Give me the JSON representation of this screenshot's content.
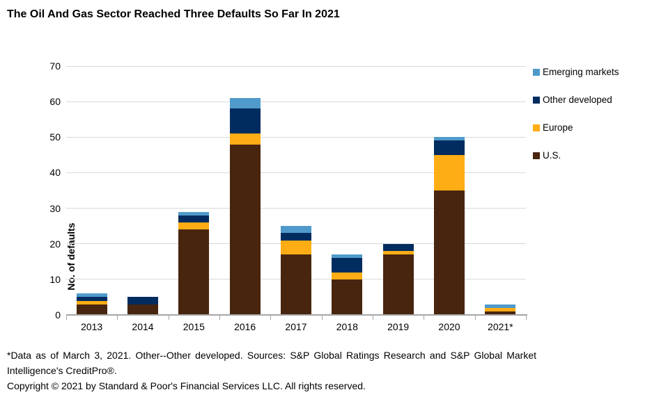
{
  "title": "The Oil And Gas Sector Reached Three Defaults So Far In 2021",
  "y_axis_label": "No. of defaults",
  "legend": [
    {
      "label": "Emerging markets",
      "color": "#4f9acb"
    },
    {
      "label": "Other developed",
      "color": "#002c5f"
    },
    {
      "label": "Europe",
      "color": "#ffad15"
    },
    {
      "label": "U.S.",
      "color": "#48250f"
    }
  ],
  "chart_data": {
    "type": "bar",
    "stacked": true,
    "title": "The Oil And Gas Sector Reached Three Defaults So Far In 2021",
    "xlabel": "",
    "ylabel": "No. of defaults",
    "ylim": [
      0,
      70
    ],
    "ytick_interval": 10,
    "grid": true,
    "legend_position": "right",
    "categories": [
      "2013",
      "2014",
      "2015",
      "2016",
      "2017",
      "2018",
      "2019",
      "2020",
      "2021*"
    ],
    "series": [
      {
        "name": "U.S.",
        "color": "#48250f",
        "values": [
          3,
          3,
          24,
          48,
          17,
          10,
          17,
          35,
          1
        ]
      },
      {
        "name": "Europe",
        "color": "#ffad15",
        "values": [
          1,
          0,
          2,
          3,
          4,
          2,
          1,
          10,
          1
        ]
      },
      {
        "name": "Other developed",
        "color": "#002c5f",
        "values": [
          1,
          2,
          2,
          7,
          2,
          4,
          2,
          4,
          0
        ]
      },
      {
        "name": "Emerging markets",
        "color": "#4f9acb",
        "values": [
          1,
          0,
          1,
          3,
          2,
          1,
          0,
          1,
          1
        ]
      }
    ],
    "totals": [
      6,
      5,
      29,
      61,
      25,
      17,
      20,
      50,
      3
    ]
  },
  "footnotes": {
    "source": "*Data as of March 3, 2021. Other--Other developed. Sources: S&P Global Ratings Research and S&P Global Market Intelligence's CreditPro®.",
    "copyright": "Copyright © 2021 by Standard & Poor's Financial Services LLC. All rights reserved."
  }
}
